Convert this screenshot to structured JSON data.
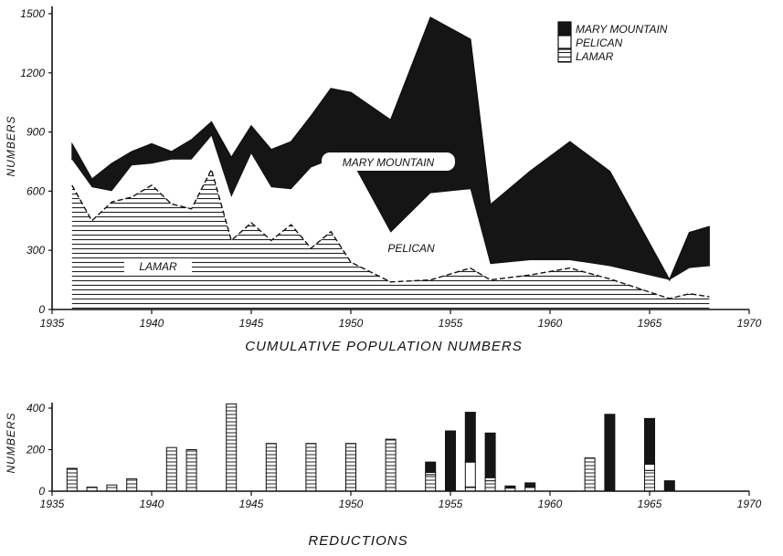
{
  "chart_data": [
    {
      "type": "area",
      "title": "CUMULATIVE POPULATION NUMBERS",
      "ylabel": "NUMBERS",
      "xlim": [
        1935,
        1970
      ],
      "ylim": [
        0,
        1500
      ],
      "x_ticks": [
        "1935",
        "1940",
        "1945",
        "1950",
        "1955",
        "1960",
        "1965",
        "1970"
      ],
      "y_ticks": [
        "0",
        "300",
        "600",
        "900",
        "1200",
        "1500"
      ],
      "legend": [
        "MARY MOUNTAIN",
        "PELICAN",
        "LAMAR"
      ],
      "legend_position": "top-right",
      "annotations": [
        "MARY MOUNTAIN",
        "PELICAN",
        "LAMAR"
      ],
      "series": [
        {
          "name": "LAMAR",
          "x": [
            1936,
            1937,
            1938,
            1939,
            1940,
            1941,
            1942,
            1943,
            1944,
            1945,
            1946,
            1947,
            1948,
            1949,
            1950,
            1952,
            1954,
            1956,
            1957,
            1959,
            1961,
            1963,
            1966,
            1967,
            1968
          ],
          "y": [
            630,
            450,
            545,
            570,
            630,
            535,
            510,
            710,
            350,
            440,
            350,
            430,
            310,
            395,
            240,
            140,
            150,
            210,
            150,
            175,
            210,
            155,
            55,
            80,
            65
          ]
        },
        {
          "name": "PELICAN",
          "x": [
            1936,
            1937,
            1938,
            1939,
            1940,
            1941,
            1942,
            1943,
            1944,
            1945,
            1946,
            1947,
            1948,
            1949,
            1950,
            1952,
            1954,
            1956,
            1957,
            1959,
            1961,
            1963,
            1966,
            1967,
            1968
          ],
          "y": [
            760,
            620,
            600,
            730,
            740,
            760,
            760,
            880,
            570,
            790,
            620,
            610,
            720,
            760,
            760,
            390,
            590,
            610,
            230,
            250,
            250,
            220,
            150,
            210,
            220
          ]
        },
        {
          "name": "MARY MOUNTAIN",
          "x": [
            1936,
            1937,
            1938,
            1939,
            1940,
            1941,
            1942,
            1943,
            1944,
            1945,
            1946,
            1947,
            1948,
            1949,
            1950,
            1952,
            1954,
            1956,
            1957,
            1959,
            1961,
            1963,
            1966,
            1967,
            1968
          ],
          "y": [
            840,
            660,
            740,
            800,
            840,
            800,
            860,
            950,
            770,
            930,
            810,
            850,
            980,
            1120,
            1100,
            960,
            1480,
            1370,
            530,
            700,
            850,
            700,
            150,
            390,
            420
          ]
        }
      ]
    },
    {
      "type": "bar",
      "title": "REDUCTIONS",
      "ylabel": "NUMBERS",
      "xlim": [
        1935,
        1970
      ],
      "ylim": [
        0,
        400
      ],
      "x_ticks": [
        "1935",
        "1940",
        "1945",
        "1950",
        "1955",
        "1960",
        "1965",
        "1970"
      ],
      "y_ticks": [
        "0",
        "200",
        "400"
      ],
      "stacked": true,
      "series": [
        {
          "name": "LAMAR",
          "x": [
            1936,
            1937,
            1938,
            1939,
            1941,
            1942,
            1944,
            1946,
            1948,
            1950,
            1952,
            1954,
            1955,
            1956,
            1957,
            1958,
            1959,
            1962,
            1963,
            1965,
            1966
          ],
          "y": [
            110,
            20,
            30,
            60,
            210,
            200,
            420,
            230,
            230,
            230,
            250,
            80,
            0,
            20,
            50,
            15,
            20,
            160,
            0,
            100,
            0
          ]
        },
        {
          "name": "PELICAN",
          "x": [
            1936,
            1937,
            1938,
            1939,
            1941,
            1942,
            1944,
            1946,
            1948,
            1950,
            1952,
            1954,
            1955,
            1956,
            1957,
            1958,
            1959,
            1962,
            1963,
            1965,
            1966
          ],
          "y": [
            0,
            0,
            0,
            0,
            0,
            0,
            0,
            0,
            0,
            0,
            0,
            10,
            0,
            120,
            15,
            0,
            0,
            0,
            0,
            30,
            0
          ]
        },
        {
          "name": "MARY MOUNTAIN",
          "x": [
            1936,
            1937,
            1938,
            1939,
            1941,
            1942,
            1944,
            1946,
            1948,
            1950,
            1952,
            1954,
            1955,
            1956,
            1957,
            1958,
            1959,
            1962,
            1963,
            1965,
            1966
          ],
          "y": [
            0,
            0,
            0,
            0,
            0,
            0,
            0,
            0,
            0,
            0,
            0,
            50,
            290,
            240,
            215,
            10,
            20,
            0,
            370,
            220,
            50
          ]
        }
      ]
    }
  ],
  "colors": {
    "ink": "#111111",
    "mary_mountain": "#151515",
    "pelican": "#ffffff",
    "lamar_line": "#222222"
  }
}
